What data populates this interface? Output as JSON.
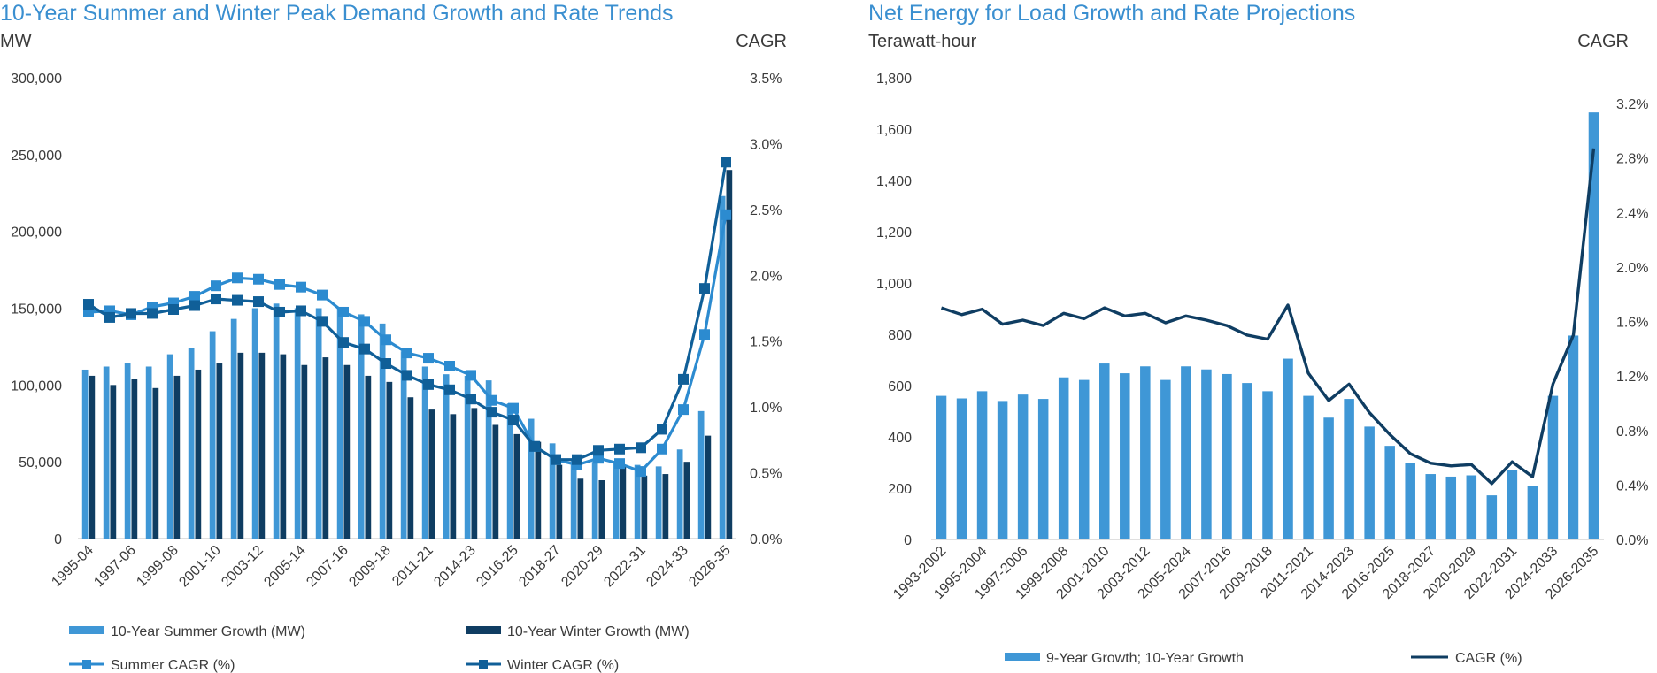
{
  "colors": {
    "light_blue": "#3f97d6",
    "navy": "#0f3d62",
    "mid_blue": "#1b75b8",
    "summer_line": "#2c8bd0",
    "winter_line": "#105f98",
    "title": "#3a8fd0",
    "axis": "#bfbfbf"
  },
  "chart_data": [
    {
      "type": "bar",
      "title": "10-Year Summer and Winter Peak Demand Growth and Rate Trends",
      "ylabel": "MW",
      "y2label": "CAGR",
      "ylim": [
        0,
        300000
      ],
      "y2lim": [
        0,
        3.5
      ],
      "y_ticks": [
        "0",
        "50,000",
        "100,000",
        "150,000",
        "200,000",
        "250,000",
        "300,000"
      ],
      "y2_ticks": [
        "0.0%",
        "0.5%",
        "1.0%",
        "1.5%",
        "2.0%",
        "2.5%",
        "3.0%",
        "3.5%"
      ],
      "x_tick_labels": [
        "1995-04",
        "1997-06",
        "1999-08",
        "2001-10",
        "2003-12",
        "2005-14",
        "2007-16",
        "2009-18",
        "2011-21",
        "2014-23",
        "2016-25",
        "2018-27",
        "2020-29",
        "2022-31",
        "2024-33",
        "2026-35"
      ],
      "categories": [
        "1995-04",
        "1996-05",
        "1997-06",
        "1998-07",
        "1999-08",
        "2000-09",
        "2001-10",
        "2002-11",
        "2003-12",
        "2004-13",
        "2005-14",
        "2006-15",
        "2007-16",
        "2008-17",
        "2009-18",
        "2010-19",
        "2011-21",
        "2012-22",
        "2014-23",
        "2015-24",
        "2016-25",
        "2017-26",
        "2018-27",
        "2019-28",
        "2020-29",
        "2021-30",
        "2022-31",
        "2023-32",
        "2024-33",
        "2025-34",
        "2026-35"
      ],
      "series": [
        {
          "name": "10-Year Summer Growth (MW)",
          "kind": "bar",
          "axis": "left",
          "values": [
            110000,
            112000,
            114000,
            112000,
            120000,
            124000,
            135000,
            143000,
            150000,
            153000,
            150000,
            150000,
            150000,
            146000,
            140000,
            122000,
            112000,
            107000,
            106000,
            103000,
            88000,
            78000,
            62000,
            52000,
            50000,
            49000,
            48000,
            47000,
            58000,
            83000,
            223000
          ]
        },
        {
          "name": "10-Year Winter Growth (MW)",
          "kind": "bar",
          "axis": "left",
          "values": [
            106000,
            100000,
            104000,
            98000,
            106000,
            110000,
            114000,
            121000,
            121000,
            120000,
            113000,
            118000,
            113000,
            106000,
            102000,
            92000,
            84000,
            81000,
            85000,
            74000,
            68000,
            63000,
            48000,
            39000,
            38000,
            47000,
            41000,
            42000,
            50000,
            67000,
            240000
          ]
        },
        {
          "name": "Summer CAGR (%)",
          "kind": "line",
          "axis": "right",
          "values": [
            1.72,
            1.73,
            1.7,
            1.76,
            1.79,
            1.84,
            1.92,
            1.98,
            1.97,
            1.93,
            1.91,
            1.85,
            1.72,
            1.65,
            1.51,
            1.41,
            1.37,
            1.31,
            1.24,
            1.05,
            0.99,
            0.7,
            0.6,
            0.56,
            0.61,
            0.57,
            0.51,
            0.68,
            0.98,
            1.55,
            2.46
          ]
        },
        {
          "name": "Winter CAGR (%)",
          "kind": "line",
          "axis": "right",
          "values": [
            1.78,
            1.68,
            1.71,
            1.71,
            1.74,
            1.77,
            1.82,
            1.81,
            1.8,
            1.72,
            1.73,
            1.65,
            1.49,
            1.44,
            1.33,
            1.24,
            1.17,
            1.13,
            1.06,
            0.96,
            0.9,
            0.7,
            0.6,
            0.6,
            0.67,
            0.68,
            0.69,
            0.83,
            1.21,
            1.9,
            2.86
          ]
        }
      ]
    },
    {
      "type": "bar",
      "title": "Net Energy for Load Growth and Rate Projections",
      "ylabel": "Terawatt-hour",
      "y2label": "CAGR",
      "ylim": [
        0,
        1800
      ],
      "y2lim": [
        0,
        3.2
      ],
      "y_ticks": [
        "0",
        "200",
        "400",
        "600",
        "800",
        "1,000",
        "1,200",
        "1,400",
        "1,600",
        "1,800"
      ],
      "y2_ticks": [
        "0.0%",
        "0.4%",
        "0.8%",
        "1.2%",
        "1.6%",
        "2.0%",
        "2.4%",
        "2.8%",
        "3.2%"
      ],
      "x_tick_labels": [
        "1993-2002",
        "1995-2004",
        "1997-2006",
        "1999-2008",
        "2001-2010",
        "2003-2012",
        "2005-2024",
        "2007-2016",
        "2009-2018",
        "2011-2021",
        "2014-2023",
        "2016-2025",
        "2018-2027",
        "2020-2029",
        "2022-2031",
        "2024-2033",
        "2026-2035"
      ],
      "categories": [
        "1993-2002",
        "1994-2003",
        "1995-2004",
        "1996-2005",
        "1997-2006",
        "1998-2007",
        "1999-2008",
        "2000-2009",
        "2001-2010",
        "2002-2011",
        "2003-2012",
        "2004-2013",
        "2005-2024",
        "2006-2015",
        "2007-2016",
        "2008-2017",
        "2009-2018",
        "2010-2019",
        "2011-2021",
        "2012-2022",
        "2014-2023",
        "2015-2024",
        "2016-2025",
        "2017-2026",
        "2018-2027",
        "2019-2028",
        "2020-2029",
        "2021-2030",
        "2022-2031",
        "2023-2032",
        "2024-2033",
        "2025-2034",
        "2026-2035"
      ],
      "series": [
        {
          "name": "9-Year Growth; 10-Year Growth",
          "kind": "bar",
          "axis": "left",
          "values": [
            560,
            550,
            578,
            540,
            565,
            548,
            632,
            622,
            686,
            648,
            675,
            622,
            675,
            663,
            645,
            610,
            578,
            705,
            560,
            475,
            548,
            440,
            365,
            300,
            255,
            245,
            250,
            172,
            272,
            208,
            560,
            795,
            1665
          ]
        },
        {
          "name": "CAGR (%)",
          "kind": "line",
          "axis": "right",
          "values": [
            1.7,
            1.65,
            1.69,
            1.58,
            1.61,
            1.57,
            1.66,
            1.62,
            1.7,
            1.64,
            1.66,
            1.59,
            1.64,
            1.61,
            1.57,
            1.5,
            1.47,
            1.72,
            1.22,
            1.02,
            1.14,
            0.93,
            0.77,
            0.63,
            0.56,
            0.54,
            0.55,
            0.41,
            0.57,
            0.46,
            1.14,
            1.5,
            2.87
          ]
        }
      ]
    }
  ]
}
